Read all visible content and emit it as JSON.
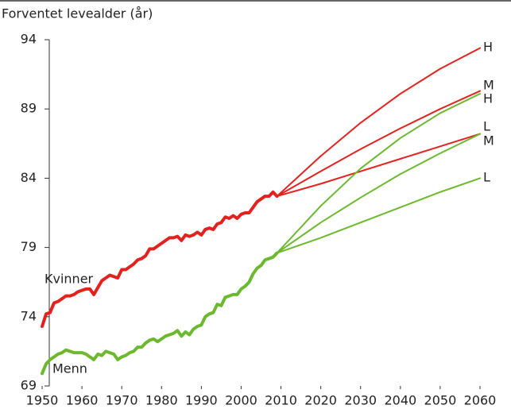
{
  "chart_data": {
    "type": "line",
    "ylabel": "Forventet levealder (år)",
    "xlim": [
      1950,
      2060
    ],
    "xticks": [
      1950,
      1960,
      1970,
      1980,
      1990,
      2000,
      2010,
      2020,
      2030,
      2040,
      2050,
      2060
    ],
    "ylim": [
      69,
      94
    ],
    "yticks": [
      69,
      74,
      79,
      84,
      89,
      94
    ],
    "series": [
      {
        "name": "Kvinner",
        "color": "#e3221f",
        "x": [
          1950,
          1951,
          1952,
          1953,
          1954,
          1955,
          1956,
          1957,
          1958,
          1959,
          1960,
          1961,
          1962,
          1963,
          1964,
          1965,
          1966,
          1967,
          1968,
          1969,
          1970,
          1971,
          1972,
          1973,
          1974,
          1975,
          1976,
          1977,
          1978,
          1979,
          1980,
          1981,
          1982,
          1983,
          1984,
          1985,
          1986,
          1987,
          1988,
          1989,
          1990,
          1991,
          1992,
          1993,
          1994,
          1995,
          1996,
          1997,
          1998,
          1999,
          2000,
          2001,
          2002,
          2003,
          2004,
          2005,
          2006,
          2007,
          2008,
          2009
        ],
        "values": [
          73.3,
          74.2,
          74.3,
          75.0,
          75.1,
          75.3,
          75.5,
          75.5,
          75.6,
          75.8,
          75.9,
          76.0,
          76.0,
          75.6,
          76.1,
          76.6,
          76.8,
          77.0,
          76.9,
          76.8,
          77.4,
          77.4,
          77.6,
          77.8,
          78.1,
          78.2,
          78.4,
          78.9,
          78.9,
          79.1,
          79.3,
          79.5,
          79.7,
          79.7,
          79.8,
          79.5,
          79.9,
          79.8,
          79.9,
          80.1,
          79.9,
          80.3,
          80.4,
          80.3,
          80.7,
          80.8,
          81.2,
          81.1,
          81.3,
          81.1,
          81.4,
          81.5,
          81.5,
          81.9,
          82.3,
          82.5,
          82.7,
          82.7,
          83.0,
          82.7
        ]
      },
      {
        "name": "Menn",
        "color": "#6cb92f",
        "x": [
          1950,
          1951,
          1952,
          1953,
          1954,
          1955,
          1956,
          1957,
          1958,
          1959,
          1960,
          1961,
          1962,
          1963,
          1964,
          1965,
          1966,
          1967,
          1968,
          1969,
          1970,
          1971,
          1972,
          1973,
          1974,
          1975,
          1976,
          1977,
          1978,
          1979,
          1980,
          1981,
          1982,
          1983,
          1984,
          1985,
          1986,
          1987,
          1988,
          1989,
          1990,
          1991,
          1992,
          1993,
          1994,
          1995,
          1996,
          1997,
          1998,
          1999,
          2000,
          2001,
          2002,
          2003,
          2004,
          2005,
          2006,
          2007,
          2008,
          2009
        ],
        "values": [
          69.9,
          70.6,
          70.9,
          71.1,
          71.3,
          71.4,
          71.6,
          71.5,
          71.4,
          71.4,
          71.4,
          71.3,
          71.1,
          70.9,
          71.3,
          71.2,
          71.5,
          71.4,
          71.3,
          70.9,
          71.1,
          71.2,
          71.4,
          71.5,
          71.8,
          71.8,
          72.1,
          72.3,
          72.4,
          72.2,
          72.4,
          72.6,
          72.7,
          72.8,
          73.0,
          72.6,
          72.9,
          72.7,
          73.1,
          73.3,
          73.4,
          74.0,
          74.2,
          74.3,
          74.9,
          74.8,
          75.4,
          75.5,
          75.6,
          75.6,
          76.0,
          76.2,
          76.5,
          77.1,
          77.5,
          77.7,
          78.1,
          78.2,
          78.3,
          78.6
        ]
      },
      {
        "name": "H",
        "color": "#e3221f",
        "x": [
          2009,
          2020,
          2030,
          2040,
          2050,
          2060
        ],
        "values": [
          82.7,
          85.6,
          88.0,
          90.1,
          91.9,
          93.4
        ]
      },
      {
        "name": "M",
        "color": "#e3221f",
        "x": [
          2009,
          2020,
          2030,
          2040,
          2050,
          2060
        ],
        "values": [
          82.7,
          84.5,
          86.1,
          87.6,
          89.0,
          90.3
        ]
      },
      {
        "name": "L",
        "color": "#e3221f",
        "x": [
          2009,
          2020,
          2030,
          2040,
          2050,
          2060
        ],
        "values": [
          82.7,
          83.6,
          84.5,
          85.4,
          86.3,
          87.2
        ]
      },
      {
        "name": "H",
        "color": "#6cb92f",
        "x": [
          2009,
          2020,
          2030,
          2040,
          2050,
          2060
        ],
        "values": [
          78.6,
          82.0,
          84.7,
          86.9,
          88.7,
          90.1
        ]
      },
      {
        "name": "M",
        "color": "#6cb92f",
        "x": [
          2009,
          2020,
          2030,
          2040,
          2050,
          2060
        ],
        "values": [
          78.6,
          80.8,
          82.6,
          84.3,
          85.8,
          87.2
        ]
      },
      {
        "name": "L",
        "color": "#6cb92f",
        "x": [
          2009,
          2020,
          2030,
          2040,
          2050,
          2060
        ],
        "values": [
          78.6,
          79.7,
          80.8,
          81.9,
          83.0,
          84.0
        ]
      }
    ]
  }
}
